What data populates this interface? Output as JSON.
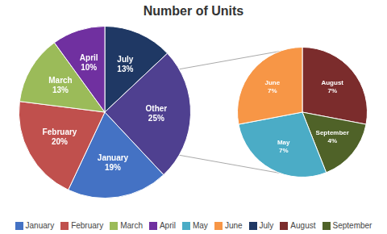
{
  "chart_data": [
    {
      "type": "pie",
      "title": "Number of Units",
      "categories": [
        "July",
        "Other",
        "January",
        "February",
        "March",
        "April"
      ],
      "values": [
        13,
        25,
        19,
        20,
        13,
        10
      ],
      "value_labels": [
        "13%",
        "25%",
        "19%",
        "20%",
        "13%",
        "10%"
      ],
      "colors": [
        "#1f3864",
        "#4f4090",
        "#4472c4",
        "#c0504d",
        "#9bbb59",
        "#7030a0"
      ],
      "data_labels": true,
      "legend": "bottom",
      "series": [
        {
          "name": "January",
          "color": "#4472c4"
        },
        {
          "name": "February",
          "color": "#c0504d"
        },
        {
          "name": "March",
          "color": "#9bbb59"
        },
        {
          "name": "April",
          "color": "#7030a0"
        },
        {
          "name": "May",
          "color": "#4bacc6"
        },
        {
          "name": "June",
          "color": "#f79646"
        },
        {
          "name": "July",
          "color": "#1f3864"
        },
        {
          "name": "August",
          "color": "#7b2c2c"
        },
        {
          "name": "September",
          "color": "#4f6228"
        }
      ]
    },
    {
      "type": "pie",
      "categories": [
        "August",
        "September",
        "May",
        "June"
      ],
      "values": [
        7,
        4,
        7,
        7
      ],
      "value_labels": [
        "7%",
        "4%",
        "7%",
        "7%"
      ],
      "colors": [
        "#7b2c2c",
        "#4f6228",
        "#4bacc6",
        "#f79646"
      ],
      "data_labels": true
    }
  ]
}
